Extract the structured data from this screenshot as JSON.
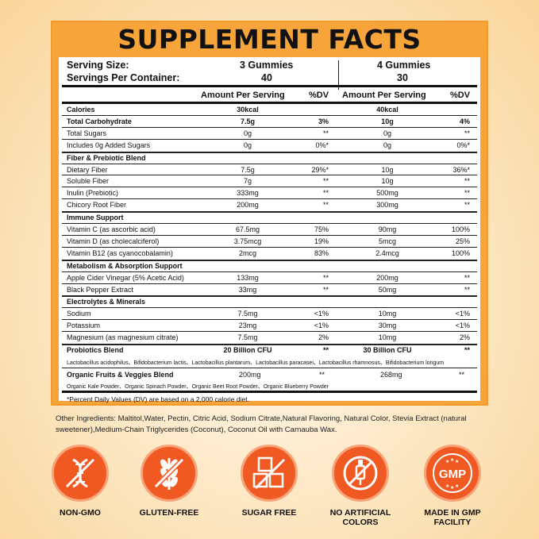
{
  "title": "SUPPLEMENT FACTS",
  "serving": {
    "size_label": "Serving Size:",
    "per_container_label": "Servings Per Container:",
    "col1_size": "3 Gummies",
    "col1_servings": "40",
    "col2_size": "4 Gummies",
    "col2_servings": "30"
  },
  "headers": {
    "amount": "Amount Per Serving",
    "dv": "%DV"
  },
  "rows": [
    {
      "name": "Calories",
      "a1": "30kcal",
      "d1": "",
      "a2": "40kcal",
      "d2": ""
    },
    {
      "name": "Total Carbohydrate",
      "a1": "7.5g",
      "d1": "3%",
      "a2": "10g",
      "d2": "4%"
    },
    {
      "name": "Total Sugars",
      "a1": "0g",
      "d1": "**",
      "a2": "0g",
      "d2": "**"
    },
    {
      "name": "Includes 0g Added Sugars",
      "a1": "0g",
      "d1": "0%*",
      "a2": "0g",
      "d2": "0%*"
    },
    {
      "name": "Fiber & Prebiotic Blend",
      "a1": "",
      "d1": "",
      "a2": "",
      "d2": ""
    },
    {
      "name": "Dietary Fiber",
      "a1": "7.5g",
      "d1": "29%*",
      "a2": "10g",
      "d2": "36%*"
    },
    {
      "name": "Soluble Fiber",
      "a1": "7g",
      "d1": "**",
      "a2": "10g",
      "d2": "**"
    },
    {
      "name": "Inulin (Prebiotic)",
      "a1": "333mg",
      "d1": "**",
      "a2": "500mg",
      "d2": "**"
    },
    {
      "name": "Chicory Root Fiber",
      "a1": "200mg",
      "d1": "**",
      "a2": "300mg",
      "d2": "**"
    },
    {
      "name": "Immune Support",
      "a1": "",
      "d1": "",
      "a2": "",
      "d2": ""
    },
    {
      "name": "Vitamin C (as ascorbic acid)",
      "a1": "67.5mg",
      "d1": "75%",
      "a2": "90mg",
      "d2": "100%"
    },
    {
      "name": "Vitamin D (as cholecalciferol)",
      "a1": "3.75mcg",
      "d1": "19%",
      "a2": "5mcg",
      "d2": "25%"
    },
    {
      "name": "Vitamin B12 (as cyanocobalamin)",
      "a1": "2mcg",
      "d1": "83%",
      "a2": "2.4mcg",
      "d2": "100%"
    },
    {
      "name": "Metabolism & Absorption Support",
      "a1": "",
      "d1": "",
      "a2": "",
      "d2": ""
    },
    {
      "name": "Apple Cider Vinegar (5% Acetic Acid)",
      "a1": "133mg",
      "d1": "**",
      "a2": "200mg",
      "d2": "**"
    },
    {
      "name": "Black Pepper Extract",
      "a1": "33mg",
      "d1": "**",
      "a2": "50mg",
      "d2": "**"
    },
    {
      "name": "Electrolytes & Minerals",
      "a1": "",
      "d1": "",
      "a2": "",
      "d2": ""
    },
    {
      "name": "Sodium",
      "a1": "7.5mg",
      "d1": "<1%",
      "a2": "10mg",
      "d2": "<1%"
    },
    {
      "name": "Potassium",
      "a1": "23mg",
      "d1": "<1%",
      "a2": "30mg",
      "d2": "<1%"
    },
    {
      "name": "Magnesium (as magnesium citrate)",
      "a1": "7.5mg",
      "d1": "2%",
      "a2": "10mg",
      "d2": "2%"
    },
    {
      "name": "Probiotics Blend",
      "a1": "20 Billion CFU",
      "d1": "**",
      "a2": "30 Billion CFU",
      "d2": "**"
    }
  ],
  "probiotic_strains": "Lactobacillus acidophilus、Bifidobacterium lactis、Lactobacillus plantarum、Lactobacillus paracasei、Lactobacillus rhamnosus、Bifidobacterium longum",
  "veggie_row": {
    "name": "Organic Fruits & Veggies Blend",
    "a1": "200mg",
    "d1": "**",
    "a2": "268mg",
    "d2": "**"
  },
  "veggie_list": "Organic Kale Powder、Organic Spinach Powder、Organic Beet Root Powder、Organic Blueberry Powder",
  "footnote": "*Percent Daily Values (DV) are based on a 2,000 calorie diet.",
  "ingredients": "Other Ingredients: Maltitol,Water, Pectin, Citric Acid, Sodium Citrate,Natural Flavoring, Natural Color, Stevia Extract (natural sweetener),Medium-Chain Triglycerides (Coconut), Coconut Oil with Carnauba Wax.",
  "badges": [
    {
      "label": "NON-GMO",
      "icon": "dna-crossed-icon"
    },
    {
      "label": "GLUTEN-FREE",
      "icon": "wheat-crossed-icon"
    },
    {
      "label": "SUGAR FREE",
      "icon": "sugar-cubes-icon"
    },
    {
      "label": "NO ARTIFICIAL COLORS",
      "icon": "dropper-crossed-icon"
    },
    {
      "label": "MADE IN GMP FACILITY",
      "icon": "gmp-seal-icon"
    }
  ],
  "gmp_text": "GMP",
  "colors": {
    "accent": "#f05a22",
    "panel": "#f7a53a"
  }
}
